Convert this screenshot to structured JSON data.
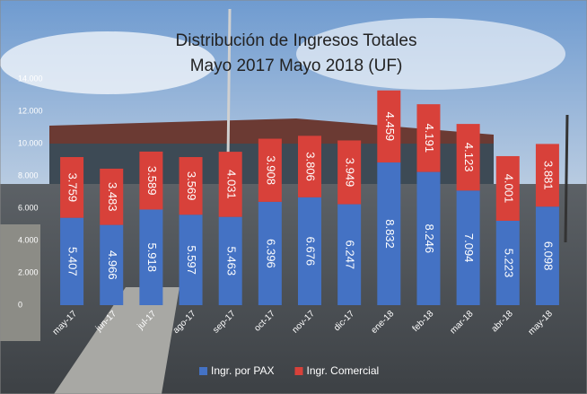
{
  "chart_data": {
    "type": "stacked_bar",
    "title": "Distribución de Ingresos Totales",
    "subtitle": "Mayo 2017 Mayo 2018 (UF)",
    "categories": [
      "may-17",
      "jun-17",
      "jul-17",
      "ago-17",
      "sep-17",
      "oct-17",
      "nov-17",
      "dic-17",
      "ene-18",
      "feb-18",
      "mar-18",
      "abr-18",
      "may-18"
    ],
    "series": [
      {
        "name": "Ingr. por PAX",
        "color": "#4472c4",
        "values": [
          5407,
          4966,
          5918,
          5597,
          5463,
          6396,
          6676,
          6247,
          8832,
          8246,
          7094,
          5223,
          6098
        ],
        "value_labels": [
          "5.407",
          "4.966",
          "5.918",
          "5.597",
          "5.463",
          "6.396",
          "6.676",
          "6.247",
          "8.832",
          "8.246",
          "7.094",
          "5.223",
          "6.098"
        ]
      },
      {
        "name": "Ingr. Comercial",
        "color": "#d8413a",
        "values": [
          3759,
          3483,
          3589,
          3569,
          4031,
          3908,
          3806,
          3949,
          4459,
          4191,
          4123,
          4001,
          3881
        ],
        "value_labels": [
          "3.759",
          "3.483",
          "3.589",
          "3.569",
          "4.031",
          "3.908",
          "3.806",
          "3.949",
          "4.459",
          "4.191",
          "4.123",
          "4.001",
          "3.881"
        ]
      }
    ],
    "ylim": [
      0,
      14000
    ],
    "yticks": [
      0,
      {
        "value": 2000,
        "label": "2.000"
      },
      {
        "value": 4000,
        "label": "4.000"
      },
      {
        "value": 6000,
        "label": "6.000"
      },
      {
        "value": 8000,
        "label": "8.000"
      },
      {
        "value": 10000,
        "label": "10.000"
      },
      {
        "value": 12000,
        "label": "12.000"
      },
      {
        "value": 14000,
        "label": "14.000"
      }
    ],
    "grid": false,
    "legend": "bottom"
  }
}
